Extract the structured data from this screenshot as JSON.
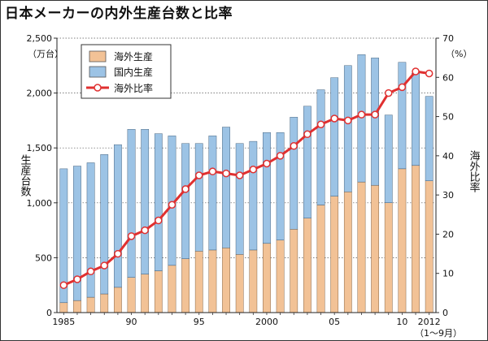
{
  "chart_data": {
    "type": "bar",
    "stacked": true,
    "title": "日本メーカーの内外生産台数と比率",
    "left_axis": {
      "unit": "（万台）",
      "label": "生産台数",
      "ylim": [
        0,
        2500
      ],
      "ticks": [
        "0",
        "500",
        "1,000",
        "1,500",
        "2,000",
        "2,500"
      ]
    },
    "right_axis": {
      "unit": "（%）",
      "label": "海外比率",
      "ylim": [
        0,
        70
      ],
      "ticks": [
        "0",
        "10",
        "20",
        "30",
        "40",
        "50",
        "60",
        "70"
      ]
    },
    "x_tick_labels": [
      {
        "year": 1985,
        "text": "1985"
      },
      {
        "year": 1990,
        "text": "90"
      },
      {
        "year": 1995,
        "text": "95"
      },
      {
        "year": 2000,
        "text": "2000"
      },
      {
        "year": 2005,
        "text": "05"
      },
      {
        "year": 2010,
        "text": "10"
      },
      {
        "year": 2012,
        "text": "2012"
      }
    ],
    "x_note": "（1〜9月）",
    "years": [
      1985,
      1986,
      1987,
      1988,
      1989,
      1990,
      1991,
      1992,
      1993,
      1994,
      1995,
      1996,
      1997,
      1998,
      1999,
      2000,
      2001,
      2002,
      2003,
      2004,
      2005,
      2006,
      2007,
      2008,
      2009,
      2010,
      2011,
      2012
    ],
    "series": [
      {
        "name": "海外生産",
        "kind": "bar",
        "color": "#f2c296",
        "values": [
          90,
          110,
          140,
          170,
          230,
          320,
          350,
          380,
          430,
          490,
          560,
          570,
          590,
          530,
          570,
          630,
          660,
          760,
          860,
          980,
          1060,
          1100,
          1190,
          1160,
          1000,
          1310,
          1340,
          1200
        ]
      },
      {
        "name": "国内生産",
        "kind": "bar",
        "color": "#9cc3e5",
        "values": [
          1220,
          1225,
          1225,
          1270,
          1300,
          1350,
          1320,
          1250,
          1180,
          1050,
          980,
          1040,
          1100,
          1010,
          990,
          1010,
          980,
          1020,
          1020,
          1050,
          1080,
          1150,
          1160,
          1160,
          800,
          970,
          840,
          770
        ]
      },
      {
        "name": "海外比率",
        "kind": "line",
        "axis": "right",
        "color": "#e03030",
        "values": [
          7,
          8.5,
          10.5,
          12,
          15,
          19.5,
          21,
          23.5,
          27.5,
          31.5,
          35,
          36,
          35.5,
          35,
          36.5,
          38,
          40,
          42.5,
          45.5,
          48,
          49.5,
          49,
          50.5,
          50.5,
          56,
          57.5,
          61.5,
          61
        ]
      }
    ],
    "legend_position": "top-left"
  }
}
